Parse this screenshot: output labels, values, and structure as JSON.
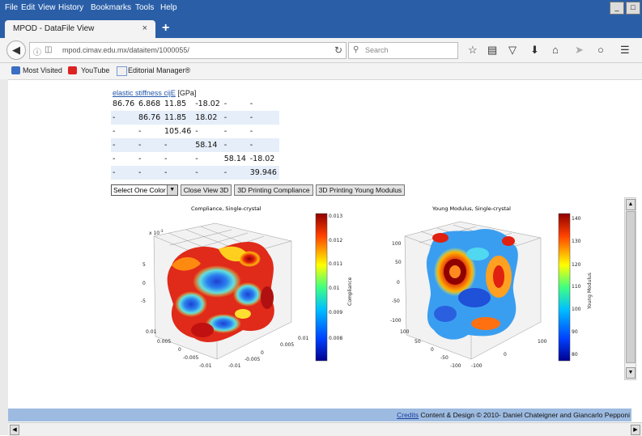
{
  "menu": [
    "File",
    "Edit",
    "View",
    "History",
    "Bookmarks",
    "Tools",
    "Help"
  ],
  "window_buttons": [
    "_",
    "□"
  ],
  "tab": {
    "title": "MPOD - DataFile View",
    "close": "×",
    "new": "+"
  },
  "nav": {
    "url": "mpod.cimav.edu.mx/dataitem/1000055/",
    "search_placeholder": "Search"
  },
  "bookmarks": [
    "Most Visited",
    "YouTube",
    "Editorial Manager®"
  ],
  "stiffness": {
    "link": "elastic stiffness cijE",
    "unit": " [GPa]",
    "rows": [
      [
        "86.76",
        "6.868",
        "11.85",
        "-18.02",
        "-",
        "-"
      ],
      [
        "-",
        "86.76",
        "11.85",
        "18.02",
        "-",
        "-"
      ],
      [
        "-",
        "-",
        "105.46",
        "-",
        "-",
        "-"
      ],
      [
        "-",
        "-",
        "-",
        "58.14",
        "-",
        "-"
      ],
      [
        "-",
        "-",
        "-",
        "-",
        "58.14",
        "-18.02"
      ],
      [
        "-",
        "-",
        "-",
        "-",
        "-",
        "39.946"
      ]
    ]
  },
  "controls": {
    "select": "Select One Color",
    "buttons": [
      "Close View 3D",
      "3D Printing Compliance",
      "3D Printing Young Modulus"
    ]
  },
  "plot_left": {
    "title": "Compliance, Single-crystal",
    "exp": "x 10",
    "exp_power": "-3",
    "z_ticks": [
      "5",
      "0",
      "-5"
    ],
    "x_ticks": [
      "0.01",
      "0.005",
      "0",
      "-0.005",
      "-0.01"
    ],
    "y_ticks": [
      "0.01",
      "0.005",
      "0",
      "-0.005",
      "-0.01"
    ],
    "cb_ticks": [
      "0.013",
      "0.012",
      "0.011",
      "0.01",
      "0.009",
      "0.008"
    ],
    "cb_label": "Compliance"
  },
  "plot_right": {
    "title": "Young Modulus, Single-crystal",
    "z_ticks": [
      "100",
      "50",
      "0",
      "-50",
      "-100"
    ],
    "x_ticks": [
      "100",
      "50",
      "0",
      "-50",
      "-100"
    ],
    "y_ticks": [
      "100",
      "0",
      "-100"
    ],
    "cb_ticks": [
      "140",
      "130",
      "120",
      "110",
      "100",
      "90",
      "80"
    ],
    "cb_label": "Young Modulus"
  },
  "footer": {
    "link": "Credits",
    "text": " Content & Design © 2010- Daniel Chateigner and Giancarlo Pepponi"
  }
}
